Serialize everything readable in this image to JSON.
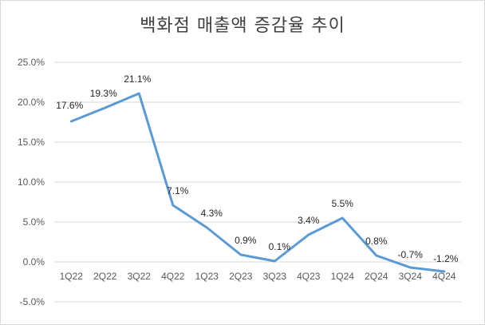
{
  "chart_data": {
    "type": "line",
    "title": "백화점 매출액 증감율 추이",
    "categories": [
      "1Q22",
      "2Q22",
      "3Q22",
      "4Q22",
      "1Q23",
      "2Q23",
      "3Q23",
      "4Q23",
      "1Q24",
      "2Q24",
      "3Q24",
      "4Q24"
    ],
    "values": [
      17.6,
      19.3,
      21.1,
      7.1,
      4.3,
      0.9,
      0.1,
      3.4,
      5.5,
      0.8,
      -0.7,
      -1.2
    ],
    "data_labels": [
      "17.6%",
      "19.3%",
      "21.1%",
      "7.1%",
      "4.3%",
      "0.9%",
      "0.1%",
      "3.4%",
      "5.5%",
      "0.8%",
      "-0.7%",
      "-1.2%"
    ],
    "y_ticks": [
      25,
      20,
      15,
      10,
      5,
      0,
      -5
    ],
    "y_tick_labels": [
      "25.0%",
      "20.0%",
      "15.0%",
      "10.0%",
      "5.0%",
      "0.0%",
      "-5.0%"
    ],
    "ylim": [
      -5,
      25
    ],
    "grid": true,
    "line_color": "#5b9bd5",
    "grid_color": "#d9d9d9",
    "legend": "none"
  }
}
